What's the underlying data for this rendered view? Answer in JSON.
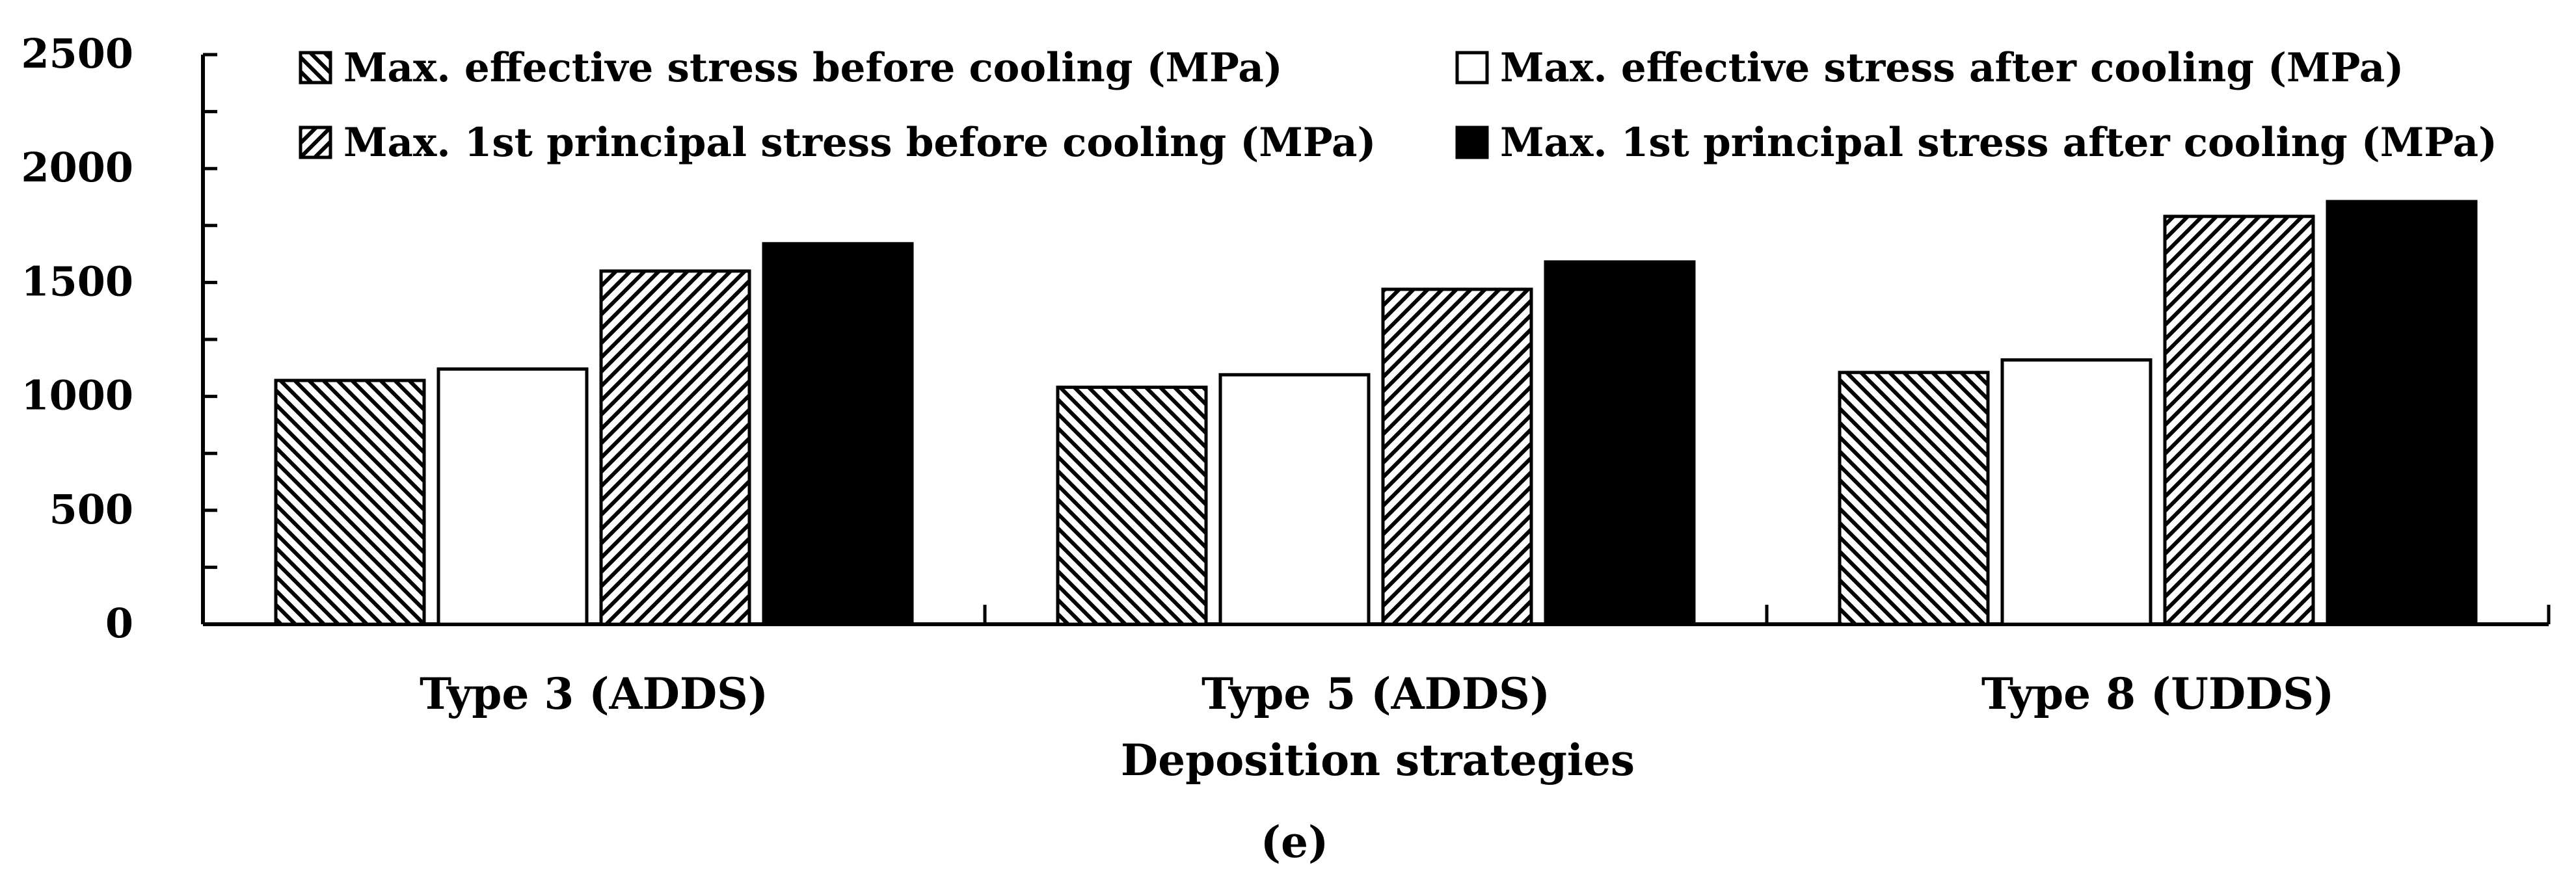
{
  "chart_data": {
    "type": "bar",
    "title": "",
    "xlabel": "Deposition strategies",
    "ylabel": "",
    "caption": "(e)",
    "ylim": [
      0,
      2500
    ],
    "yticks": [
      0,
      500,
      1000,
      1500,
      2000,
      2500
    ],
    "categories": [
      "Type 3 (ADDS)",
      "Type 5 (ADDS)",
      "Type 8 (UDDS)"
    ],
    "legend_position": "top",
    "series": [
      {
        "name": "Max. effective stress before cooling (MPa)",
        "pattern": "back-hatch",
        "values": [
          1070,
          1040,
          1105
        ]
      },
      {
        "name": "Max. effective stress after cooling (MPa)",
        "pattern": "white",
        "values": [
          1120,
          1095,
          1160
        ]
      },
      {
        "name": "Max. 1st principal stress before cooling (MPa)",
        "pattern": "forward-hatch",
        "values": [
          1550,
          1470,
          1790
        ]
      },
      {
        "name": "Max. 1st principal stress after cooling (MPa)",
        "pattern": "solid",
        "values": [
          1670,
          1590,
          1855
        ]
      }
    ]
  }
}
